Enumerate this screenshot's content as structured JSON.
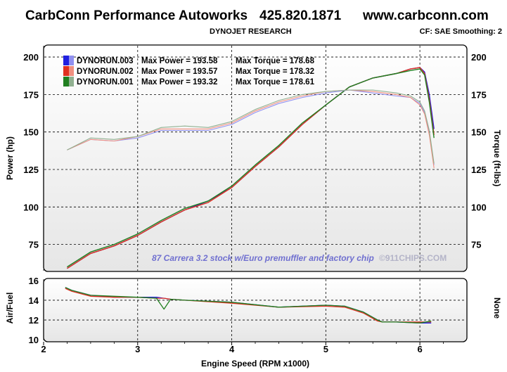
{
  "header": {
    "company": "CarbConn Performance Autoworks",
    "phone": "425.820.1871",
    "website": "www.carbconn.com",
    "subtitle": "DYNOJET RESEARCH",
    "settings": "CF: SAE  Smoothing: 2"
  },
  "colors": {
    "run003": "#2020e0",
    "run003_light": "#9090f0",
    "run002": "#e03020",
    "run002_light": "#f09080",
    "run001": "#208020",
    "run001_light": "#90b090",
    "annotation": "#7070d0"
  },
  "chart_data": [
    {
      "type": "line",
      "xlabel": "Engine Speed (RPM x1000)",
      "ylabel": "Power (hp)",
      "y2label": "Torque (ft-lbs)",
      "xlim": [
        2,
        6.5
      ],
      "ylim": [
        57,
        208
      ],
      "y2lim": [
        57,
        208
      ],
      "xticks": [
        "2",
        "3",
        "4",
        "5",
        "6"
      ],
      "yticks": [
        75,
        100,
        125,
        150,
        175,
        200
      ],
      "y2ticks": [
        75,
        100,
        125,
        150,
        175,
        200
      ],
      "grid": true,
      "legend_position": "top-left",
      "annotation": "87 Carrera 3.2 stock w/Euro premuffler and factory chip",
      "watermark": "©911CHIPS.COM",
      "legend": [
        {
          "run": "DYNORUN.003",
          "max_power": "Max Power = 193.58",
          "max_torque": "Max Torque = 178.68"
        },
        {
          "run": "DYNORUN.002",
          "max_power": "Max Power = 193.57",
          "max_torque": "Max Torque = 178.32"
        },
        {
          "run": "DYNORUN.001",
          "max_power": "Max Power = 193.32",
          "max_torque": "Max Torque = 178.61"
        }
      ],
      "x": [
        2.25,
        2.5,
        2.75,
        3.0,
        3.25,
        3.5,
        3.75,
        4.0,
        4.25,
        4.5,
        4.75,
        5.0,
        5.25,
        5.5,
        5.75,
        5.9,
        6.0,
        6.05,
        6.1,
        6.15
      ],
      "series": [
        {
          "name": "DYNORUN.003",
          "quantity": "power",
          "values": [
            59,
            69,
            74,
            81,
            90,
            98,
            104,
            113,
            127,
            140,
            155,
            168,
            180,
            186,
            189,
            192,
            193,
            190,
            175,
            152
          ]
        },
        {
          "name": "DYNORUN.002",
          "quantity": "power",
          "values": [
            59,
            69,
            74,
            81,
            90,
            98,
            103,
            113,
            127,
            140,
            155,
            168,
            180,
            186,
            189,
            192,
            193,
            189,
            172,
            148
          ]
        },
        {
          "name": "DYNORUN.001",
          "quantity": "power",
          "values": [
            60,
            70,
            75,
            82,
            91,
            99,
            104,
            114,
            128,
            141,
            156,
            168,
            180,
            186,
            189,
            191,
            192,
            188,
            170,
            146
          ]
        },
        {
          "name": "DYNORUN.003",
          "quantity": "torque",
          "values": [
            138,
            145,
            144,
            146,
            151,
            151,
            151,
            155,
            163,
            169,
            173,
            176,
            178,
            176,
            174,
            173,
            169,
            163,
            150,
            128
          ]
        },
        {
          "name": "DYNORUN.002",
          "quantity": "torque",
          "values": [
            138,
            145,
            144,
            147,
            152,
            152,
            152,
            156,
            164,
            170,
            174,
            177,
            178,
            177,
            175,
            173,
            168,
            162,
            148,
            126
          ]
        },
        {
          "name": "DYNORUN.001",
          "quantity": "torque",
          "values": [
            138,
            146,
            145,
            147,
            153,
            154,
            153,
            157,
            165,
            171,
            175,
            177,
            178,
            178,
            176,
            174,
            170,
            164,
            151,
            129
          ]
        }
      ]
    },
    {
      "type": "line",
      "xlabel": "Engine Speed (RPM x1000)",
      "ylabel": "Air/Fuel",
      "y2label": "None",
      "xlim": [
        2,
        6.5
      ],
      "ylim": [
        9.8,
        16.2
      ],
      "yticks": [
        10,
        12,
        14,
        16
      ],
      "grid": true,
      "x": [
        2.23,
        2.3,
        2.5,
        2.75,
        3.0,
        3.2,
        3.28,
        3.35,
        3.5,
        4.0,
        4.5,
        5.0,
        5.2,
        5.4,
        5.55,
        5.6,
        5.75,
        6.0,
        6.12
      ],
      "series": [
        {
          "name": "DYNORUN.003",
          "values": [
            15.3,
            15.0,
            14.5,
            14.3,
            14.3,
            14.3,
            14.2,
            14.1,
            14.0,
            13.8,
            13.3,
            13.5,
            13.4,
            12.8,
            12.0,
            11.8,
            11.8,
            11.7,
            11.7
          ]
        },
        {
          "name": "DYNORUN.002",
          "values": [
            15.2,
            14.9,
            14.4,
            14.3,
            14.3,
            14.2,
            14.2,
            14.1,
            14.0,
            13.7,
            13.3,
            13.4,
            13.3,
            12.7,
            11.9,
            11.8,
            11.8,
            11.8,
            11.8
          ]
        },
        {
          "name": "DYNORUN.001",
          "values": [
            15.3,
            15.0,
            14.5,
            14.4,
            14.3,
            14.2,
            13.1,
            14.1,
            14.0,
            13.8,
            13.3,
            13.5,
            13.4,
            12.8,
            12.0,
            11.8,
            11.8,
            11.7,
            11.9
          ]
        }
      ]
    }
  ]
}
